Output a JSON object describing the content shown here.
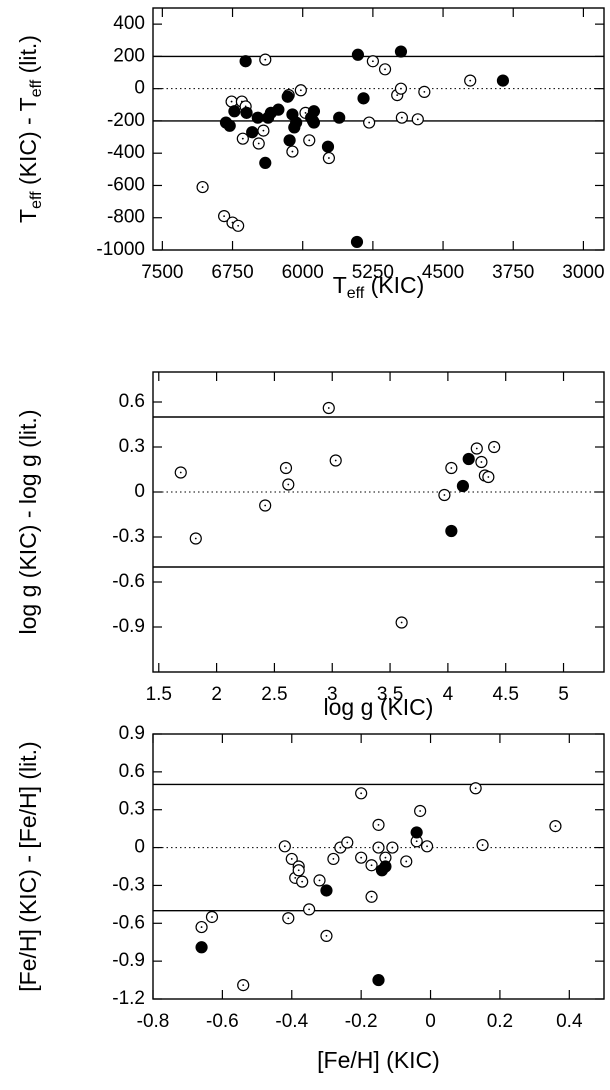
{
  "chart_data": [
    {
      "type": "scatter",
      "xlabel": [
        "T",
        "eff",
        " (KIC)"
      ],
      "ylabel": [
        "T",
        "eff",
        " (KIC) - T",
        "eff",
        " (lit.)"
      ],
      "xlim": [
        7600,
        2780
      ],
      "ylim": [
        -1000,
        500
      ],
      "xticks": [
        7500,
        6750,
        6000,
        5250,
        4500,
        3750,
        3000
      ],
      "yticks": [
        400,
        200,
        0,
        -200,
        -400,
        -600,
        -800,
        -1000
      ],
      "hlines": [
        {
          "value": 200,
          "style": "solid"
        },
        {
          "value": 0,
          "style": "dotted"
        },
        {
          "value": -200,
          "style": "solid"
        }
      ],
      "series": [
        {
          "marker": "open",
          "color": "#000000",
          "x": [
            7070,
            6840,
            6750,
            6690,
            6400,
            6760,
            6650,
            6610,
            6640,
            6470,
            6420,
            6150,
            6020,
            6110,
            5970,
            5930,
            5890,
            5720,
            5290,
            5250,
            5120,
            4990,
            4950,
            4940,
            4770,
            4700,
            4210
          ],
          "values": [
            -610,
            -790,
            -830,
            -850,
            180,
            -80,
            -80,
            -110,
            -310,
            -340,
            -260,
            -40,
            -10,
            -390,
            -150,
            -320,
            -200,
            -430,
            -210,
            170,
            120,
            -40,
            0,
            -180,
            -190,
            -20,
            50
          ]
        },
        {
          "marker": "filled",
          "color": "#000000",
          "x": [
            6610,
            5410,
            4950,
            3860,
            5350,
            5610,
            5730,
            6140,
            6400,
            5420,
            6820,
            6780,
            6730,
            6600,
            6540,
            6480,
            6370,
            6340,
            6260,
            6160,
            6110,
            6070,
            6090,
            5910,
            5880,
            5880
          ],
          "values": [
            170,
            210,
            230,
            50,
            -60,
            -180,
            -360,
            -320,
            -460,
            -950,
            -210,
            -230,
            -140,
            -150,
            -270,
            -180,
            -180,
            -150,
            -130,
            -50,
            -160,
            -210,
            -240,
            -180,
            -140,
            -210
          ]
        }
      ]
    },
    {
      "type": "scatter",
      "xlabel": [
        "log g (KIC)"
      ],
      "ylabel": [
        "log g (KIC) - log g (lit.)"
      ],
      "xlim": [
        1.45,
        5.35
      ],
      "ylim": [
        -1.2,
        0.8
      ],
      "xticks": [
        1.5,
        2,
        2.5,
        3,
        3.5,
        4,
        4.5,
        5
      ],
      "yticks": [
        0.6,
        0.3,
        0,
        -0.3,
        -0.6,
        -0.9
      ],
      "hlines": [
        {
          "value": 0.5,
          "style": "solid"
        },
        {
          "value": 0,
          "style": "dotted"
        },
        {
          "value": -0.5,
          "style": "solid"
        }
      ],
      "series": [
        {
          "marker": "open",
          "color": "#000000",
          "x": [
            1.69,
            1.82,
            2.42,
            2.6,
            2.62,
            2.97,
            3.03,
            3.6,
            3.97,
            4.03,
            4.25,
            4.29,
            4.32,
            4.35,
            4.4
          ],
          "values": [
            0.13,
            -0.31,
            -0.09,
            0.16,
            0.05,
            0.56,
            0.21,
            -0.87,
            -0.02,
            0.16,
            0.29,
            0.2,
            0.11,
            0.1,
            0.3
          ]
        },
        {
          "marker": "filled",
          "color": "#000000",
          "x": [
            4.13,
            4.18,
            4.03
          ],
          "values": [
            0.04,
            0.22,
            -0.26
          ]
        }
      ]
    },
    {
      "type": "scatter",
      "xlabel": [
        "[Fe/H] (KIC)"
      ],
      "ylabel": [
        "[Fe/H] (KIC) - [Fe/H] (lit.)"
      ],
      "xlim": [
        -0.8,
        0.5
      ],
      "ylim": [
        -1.2,
        0.9
      ],
      "xticks": [
        -0.8,
        -0.6,
        -0.4,
        -0.2,
        0,
        0.2,
        0.4
      ],
      "yticks": [
        0.9,
        0.6,
        0.3,
        0,
        -0.3,
        -0.6,
        -0.9,
        -1.2
      ],
      "hlines": [
        {
          "value": 0.5,
          "style": "solid"
        },
        {
          "value": 0,
          "style": "dotted"
        },
        {
          "value": -0.5,
          "style": "solid"
        }
      ],
      "series": [
        {
          "marker": "open",
          "color": "#000000",
          "x": [
            -0.66,
            -0.63,
            -0.54,
            -0.42,
            -0.41,
            -0.4,
            -0.39,
            -0.38,
            -0.38,
            -0.37,
            -0.35,
            -0.32,
            -0.3,
            -0.28,
            -0.26,
            -0.24,
            -0.2,
            -0.2,
            -0.17,
            -0.17,
            -0.15,
            -0.15,
            -0.13,
            -0.11,
            -0.07,
            -0.04,
            -0.03,
            -0.01,
            0.13,
            0.15,
            0.36
          ],
          "values": [
            -0.63,
            -0.55,
            -1.09,
            0.01,
            -0.56,
            -0.09,
            -0.24,
            -0.15,
            -0.18,
            -0.27,
            -0.49,
            -0.26,
            -0.7,
            -0.09,
            0,
            0.04,
            0.43,
            -0.08,
            -0.14,
            -0.39,
            0.18,
            0,
            -0.08,
            0,
            -0.11,
            0.05,
            0.29,
            0.01,
            0.47,
            0.02,
            0.17
          ]
        },
        {
          "marker": "filled",
          "color": "#000000",
          "x": [
            -0.66,
            -0.3,
            -0.15,
            -0.14,
            -0.13,
            -0.04
          ],
          "values": [
            -0.79,
            -0.34,
            -1.05,
            -0.18,
            -0.15,
            0.12
          ]
        }
      ]
    }
  ]
}
